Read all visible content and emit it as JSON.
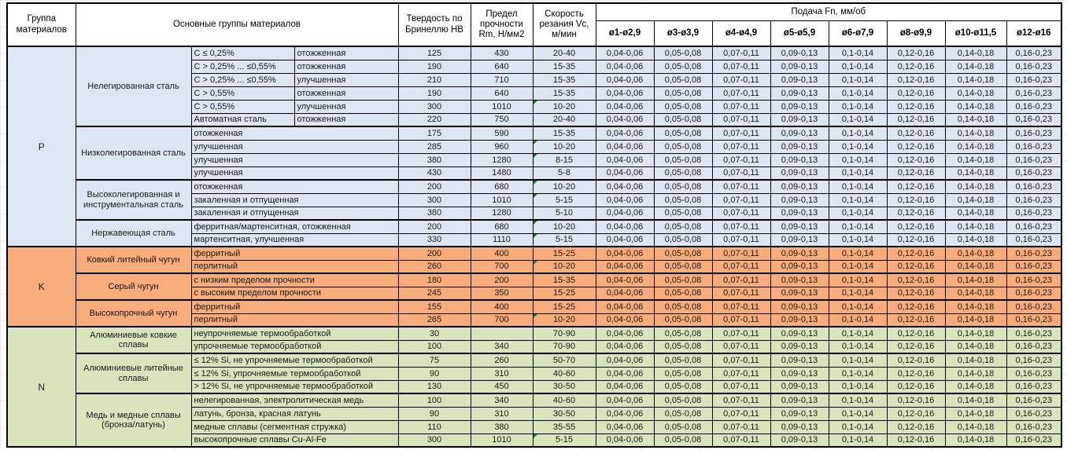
{
  "header": {
    "group_col": "Группа материалов",
    "materials_col": "Основные группы материалов",
    "hardness_col": "Твердость по Бринеллю НВ",
    "strength_col": "Предел прочности Rm, Н/мм2",
    "speed_col": "Скорость резания Vc, м/мин",
    "feed_title": "Подача Fn, мм/об",
    "feed_columns": [
      "ø1-ø2,9",
      "ø3-ø3,9",
      "ø4-ø4,9",
      "ø5-ø5,9",
      "ø6-ø7,9",
      "ø8-ø9,9",
      "ø10-ø11,5",
      "ø12-ø16"
    ]
  },
  "group_colors": {
    "P": "#dbe6f2",
    "K": "#f8ab7b",
    "N": "#d7e4bc"
  },
  "marker_color": "#217a3c",
  "feed_values": [
    "0,04-0,06",
    "0,05-0,08",
    "0,07-0,11",
    "0,09-0,13",
    "0,1-0,14",
    "0,12-0,16",
    "0,14-0,18",
    "0,16-0,23"
  ],
  "rows": [
    {
      "group": "P",
      "subgroup": "Нелегированная сталь",
      "material": "С ≤ 0,25%",
      "state": "отожженная",
      "hb": "125",
      "rm": "430",
      "vc": "20-40",
      "tri": false
    },
    {
      "group": "P",
      "subgroup": "Нелегированная сталь",
      "material": "С > 0,25% ... ≤0,55%",
      "state": "отожженная",
      "hb": "190",
      "rm": "640",
      "vc": "15-35",
      "tri": false
    },
    {
      "group": "P",
      "subgroup": "Нелегированная сталь",
      "material": "С > 0,25% ... ≤0,55%",
      "state": "улучшенная",
      "hb": "210",
      "rm": "710",
      "vc": "15-35",
      "tri": false
    },
    {
      "group": "P",
      "subgroup": "Нелегированная сталь",
      "material": "С > 0,55%",
      "state": "отожженная",
      "hb": "190",
      "rm": "640",
      "vc": "15-35",
      "tri": false
    },
    {
      "group": "P",
      "subgroup": "Нелегированная сталь",
      "material": "С > 0,55%",
      "state": "улучшенная",
      "hb": "300",
      "rm": "1010",
      "vc": "10-20",
      "tri": true
    },
    {
      "group": "P",
      "subgroup": "Нелегированная сталь",
      "material": "Автоматная сталь",
      "state": "отожженная",
      "hb": "220",
      "rm": "750",
      "vc": "20-40",
      "tri": false
    },
    {
      "group": "P",
      "subgroup": "Низколегированная сталь",
      "material": "отожженная",
      "state": null,
      "hb": "175",
      "rm": "590",
      "vc": "15-35",
      "tri": false
    },
    {
      "group": "P",
      "subgroup": "Низколегированная сталь",
      "material": "улучшенная",
      "state": null,
      "hb": "285",
      "rm": "960",
      "vc": "10-20",
      "tri": true
    },
    {
      "group": "P",
      "subgroup": "Низколегированная сталь",
      "material": "улучшенная",
      "state": null,
      "hb": "380",
      "rm": "1280",
      "vc": "8-15",
      "tri": true
    },
    {
      "group": "P",
      "subgroup": "Низколегированная сталь",
      "material": "улучшенная",
      "state": null,
      "hb": "430",
      "rm": "1480",
      "vc": "5-8",
      "tri": false
    },
    {
      "group": "P",
      "subgroup": "Высоколегированная и инструментальная сталь",
      "material": "отожженная",
      "state": null,
      "hb": "200",
      "rm": "680",
      "vc": "10-20",
      "tri": true
    },
    {
      "group": "P",
      "subgroup": "Высоколегированная и инструментальная сталь",
      "material": "закаленная и отпущенная",
      "state": null,
      "hb": "300",
      "rm": "1010",
      "vc": "5-15",
      "tri": true
    },
    {
      "group": "P",
      "subgroup": "Высоколегированная и инструментальная сталь",
      "material": "закаленная и отпущенная",
      "state": null,
      "hb": "380",
      "rm": "1280",
      "vc": "5-10",
      "tri": false
    },
    {
      "group": "P",
      "subgroup": "Нержавеющая сталь",
      "material": "ферритная/мартенситная, отожженная",
      "state": null,
      "hb": "200",
      "rm": "680",
      "vc": "10-20",
      "tri": true
    },
    {
      "group": "P",
      "subgroup": "Нержавеющая сталь",
      "material": "мартенситная, улучшенная",
      "state": null,
      "hb": "330",
      "rm": "1110",
      "vc": "5-15",
      "tri": true
    },
    {
      "group": "K",
      "subgroup": "Ковкий литейный чугун",
      "material": "ферритный",
      "state": null,
      "hb": "200",
      "rm": "400",
      "vc": "15-25",
      "tri": false
    },
    {
      "group": "K",
      "subgroup": "Ковкий литейный чугун",
      "material": "перлитный",
      "state": null,
      "hb": "260",
      "rm": "700",
      "vc": "10-20",
      "tri": true
    },
    {
      "group": "K",
      "subgroup": "Серый чугун",
      "material": "с низким пределом прочности",
      "state": null,
      "hb": "180",
      "rm": "200",
      "vc": "15-35",
      "tri": false
    },
    {
      "group": "K",
      "subgroup": "Серый чугун",
      "material": "с высоким пределом прочности",
      "state": null,
      "hb": "245",
      "rm": "350",
      "vc": "15-25",
      "tri": false
    },
    {
      "group": "K",
      "subgroup": "Высокопрочный чугун",
      "material": "ферритный",
      "state": null,
      "hb": "155",
      "rm": "400",
      "vc": "15-25",
      "tri": false
    },
    {
      "group": "K",
      "subgroup": "Высокопрочный чугун",
      "material": "перлитный",
      "state": null,
      "hb": "265",
      "rm": "700",
      "vc": "10-20",
      "tri": true
    },
    {
      "group": "N",
      "subgroup": "Алюминиевые ковкие сплавы",
      "material": "неупрочняемые термообработкой",
      "state": null,
      "hb": "30",
      "rm": "",
      "vc": "70-90",
      "tri": false
    },
    {
      "group": "N",
      "subgroup": "Алюминиевые ковкие сплавы",
      "material": "упрочняемые термообработкой",
      "state": null,
      "hb": "100",
      "rm": "340",
      "vc": "70-90",
      "tri": false
    },
    {
      "group": "N",
      "subgroup": "Алюминиевые литейные сплавы",
      "material": "≤ 12% Si, не упрочняемые термообработкой",
      "state": null,
      "hb": "75",
      "rm": "260",
      "vc": "50-70",
      "tri": false
    },
    {
      "group": "N",
      "subgroup": "Алюминиевые литейные сплавы",
      "material": "≤ 12% Si, упрочняемые термообработкой",
      "state": null,
      "hb": "90",
      "rm": "310",
      "vc": "40-60",
      "tri": false
    },
    {
      "group": "N",
      "subgroup": "Алюминиевые литейные сплавы",
      "material": "> 12% Si, не упрочняемые термообработкой",
      "state": null,
      "hb": "130",
      "rm": "450",
      "vc": "30-50",
      "tri": false
    },
    {
      "group": "N",
      "subgroup": "Медь и медные сплавы (бронза/латунь)",
      "material": "нелегированная, электролитическая медь",
      "state": null,
      "hb": "100",
      "rm": "340",
      "vc": "40-60",
      "tri": false
    },
    {
      "group": "N",
      "subgroup": "Медь и медные сплавы (бронза/латунь)",
      "material": "латунь, бронза, красная латунь",
      "state": null,
      "hb": "90",
      "rm": "310",
      "vc": "30-50",
      "tri": false
    },
    {
      "group": "N",
      "subgroup": "Медь и медные сплавы (бронза/латунь)",
      "material": "медные сплавы (сегментная стружка)",
      "state": null,
      "hb": "110",
      "rm": "380",
      "vc": "35-55",
      "tri": false
    },
    {
      "group": "N",
      "subgroup": "Медь и медные сплавы (бронза/латунь)",
      "material": "высокопрочные сплавы Cu-Al-Fe",
      "state": null,
      "hb": "300",
      "rm": "1010",
      "vc": "5-15",
      "tri": true
    }
  ]
}
